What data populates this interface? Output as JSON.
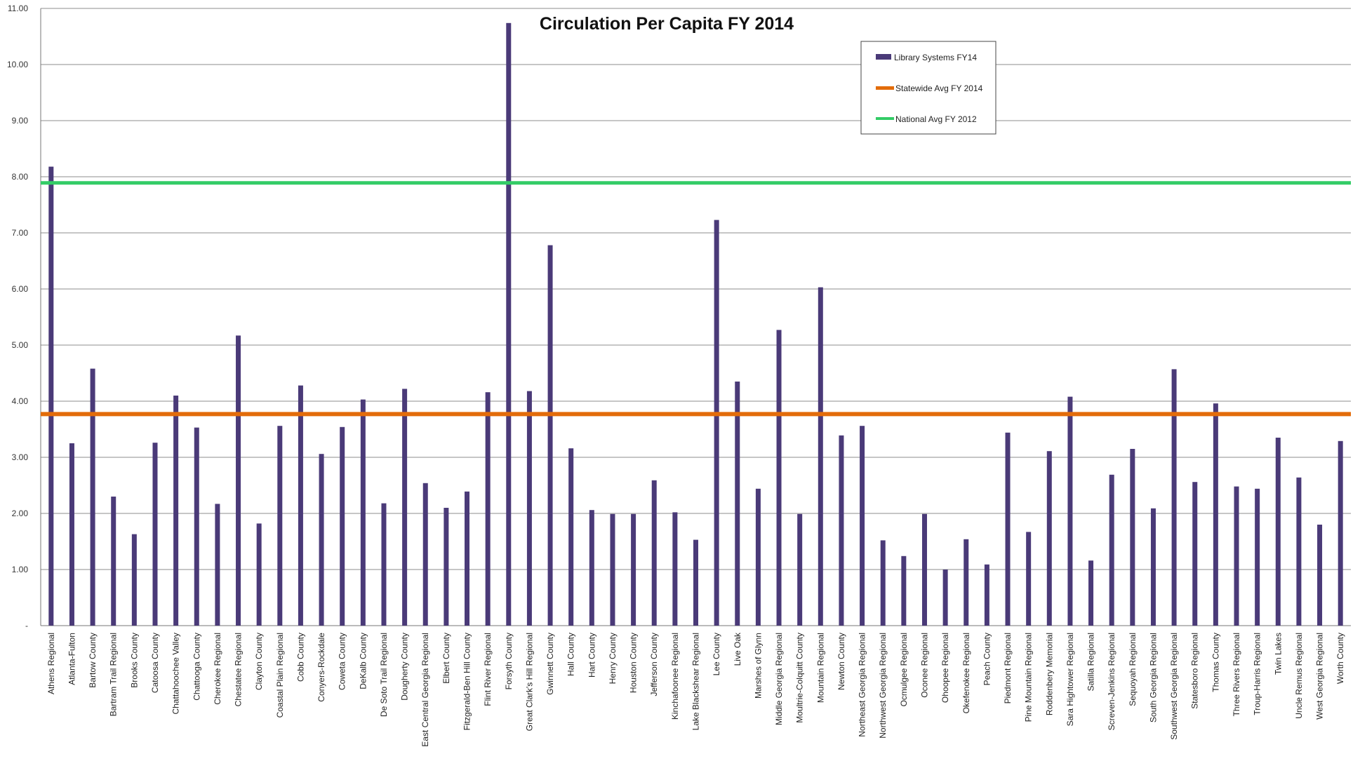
{
  "chart_data": {
    "type": "bar",
    "title": "Circulation Per Capita FY 2014",
    "xlabel": "",
    "ylabel": "",
    "ylim": [
      0,
      11
    ],
    "y_ticks": [
      {
        "value": 0,
        "label": "-"
      },
      {
        "value": 1,
        "label": "1.00"
      },
      {
        "value": 2,
        "label": "2.00"
      },
      {
        "value": 3,
        "label": "3.00"
      },
      {
        "value": 4,
        "label": "4.00"
      },
      {
        "value": 5,
        "label": "5.00"
      },
      {
        "value": 6,
        "label": "6.00"
      },
      {
        "value": 7,
        "label": "7.00"
      },
      {
        "value": 8,
        "label": "8.00"
      },
      {
        "value": 9,
        "label": "9.00"
      },
      {
        "value": 10,
        "label": "10.00"
      },
      {
        "value": 11,
        "label": "11.00"
      }
    ],
    "grid": true,
    "legend_position": "top-right",
    "categories": [
      "Athens Regional",
      "Atlanta-Fulton",
      "Bartow County",
      "Bartram Trail Regional",
      "Brooks County",
      "Catoosa County",
      "Chattahoochee Valley",
      "Chattooga County",
      "Cherokee Regional",
      "Chestatee Regional",
      "Clayton County",
      "Coastal Plain Regional",
      "Cobb County",
      "Conyers-Rockdale",
      "Coweta County",
      "DeKalb County",
      "De Soto Trail Regional",
      "Dougherty County",
      "East Central Georgia Regional",
      "Elbert County",
      "Fitzgerald-Ben Hill County",
      "Flint River Regional",
      "Forsyth County",
      "Great Clark's Hill Regional",
      "Gwinnett County",
      "Hall County",
      "Hart County",
      "Henry County",
      "Houston County",
      "Jefferson County",
      "Kinchafoonee Regional",
      "Lake Blackshear Regional",
      "Lee County",
      "Live Oak",
      "Marshes of Glynn",
      "Middle Georgia Regional",
      "Moultrie-Colquitt County",
      "Mountain Regional",
      "Newton County",
      "Northeast Georgia Regional",
      "Northwest Georgia Regional",
      "Ocmulgee Regional",
      "Oconee Regional",
      "Ohoopee Regional",
      "Okefenokee Regional",
      "Peach County",
      "Piedmont Regional",
      "Pine Mountain Regional",
      "Roddenbery Memorial",
      "Sara Hightower Regional",
      "Satilla Regional",
      "Screven-Jenkins Regional",
      "Sequoyah Regional",
      "South Georgia Regional",
      "Southwest Georgia Regional",
      "Statesboro Regional",
      "Thomas County",
      "Three Rivers Regional",
      "Troup-Harris Regional",
      "Twin Lakes",
      "Uncle Remus Regional",
      "West Georgia Regional",
      "Worth County"
    ],
    "series": [
      {
        "name": "Library Systems FY14",
        "kind": "bar",
        "color": "#4a3a78",
        "values": [
          8.18,
          3.25,
          4.58,
          2.3,
          1.63,
          3.26,
          4.1,
          3.53,
          2.17,
          5.17,
          1.82,
          3.56,
          4.28,
          3.06,
          3.54,
          4.03,
          2.18,
          4.22,
          2.54,
          2.1,
          2.39,
          4.16,
          10.74,
          4.18,
          6.78,
          3.16,
          2.06,
          1.99,
          1.99,
          2.59,
          2.02,
          1.53,
          7.23,
          4.35,
          2.44,
          5.27,
          1.99,
          6.03,
          3.39,
          3.56,
          1.52,
          1.24,
          1.99,
          1.0,
          1.54,
          1.09,
          3.44,
          1.67,
          3.11,
          4.08,
          1.16,
          2.69,
          3.15,
          2.09,
          4.57,
          2.56,
          3.96,
          2.48,
          2.44,
          3.35,
          2.64,
          1.8,
          3.29
        ]
      },
      {
        "name": "Statewide Avg FY 2014",
        "kind": "line",
        "color": "#e36c0a",
        "value": 3.77
      },
      {
        "name": "National Avg FY 2012",
        "kind": "line",
        "color": "#33cc66",
        "value": 7.89
      }
    ]
  }
}
